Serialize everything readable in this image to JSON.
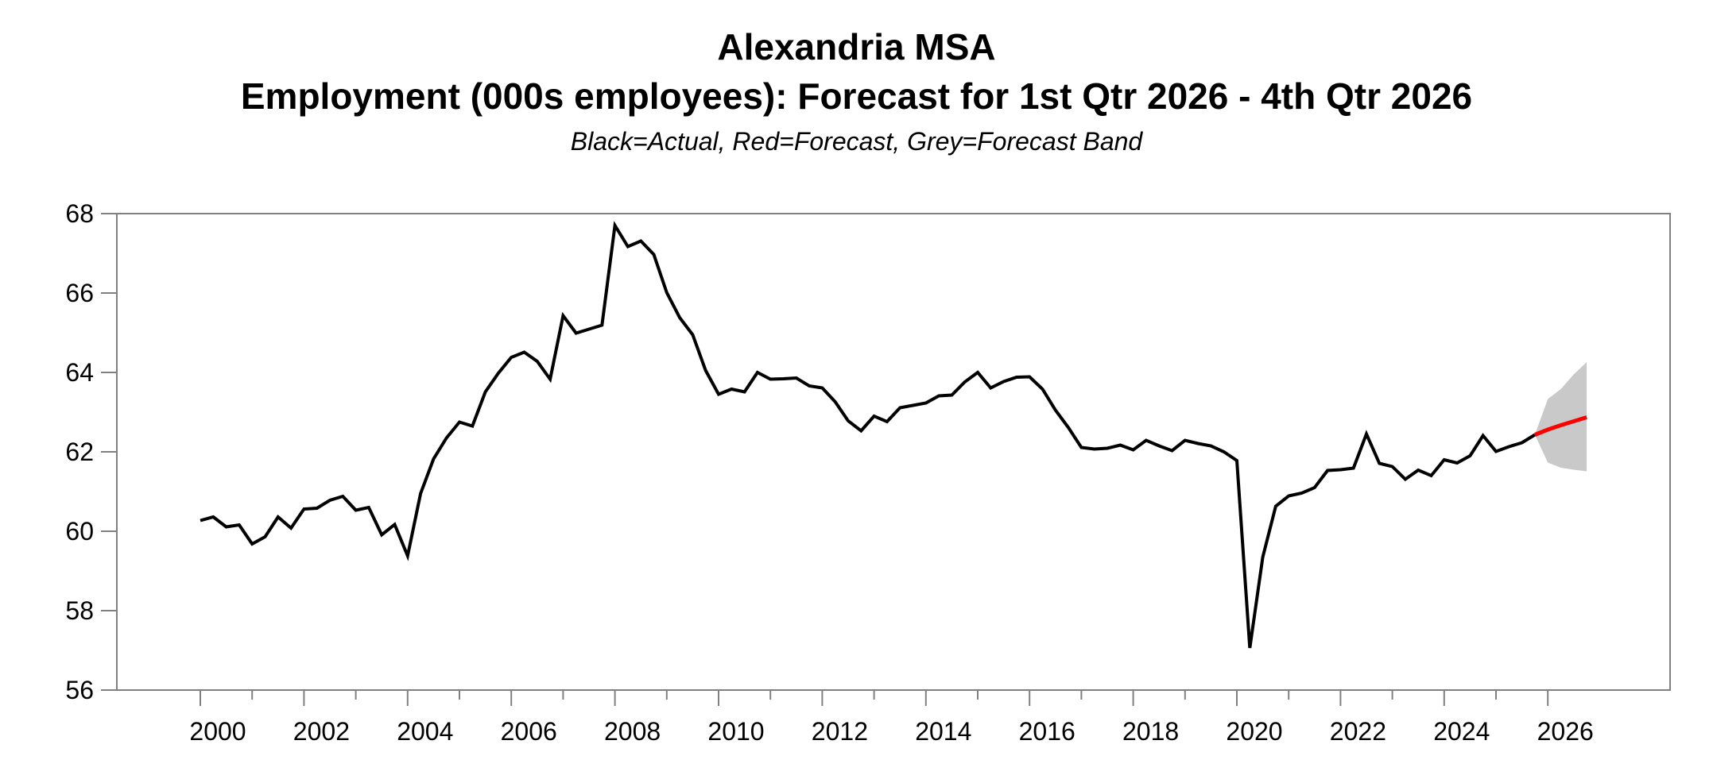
{
  "header": {
    "title_line1": "Alexandria MSA",
    "title_line2": "Employment (000s employees): Forecast for 1st Qtr 2026 - 4th Qtr 2026",
    "subtitle": "Black=Actual, Red=Forecast, Grey=Forecast Band"
  },
  "chart_data": {
    "type": "line",
    "title": "Alexandria MSA",
    "subtitle": "Employment (000s employees): Forecast for 1st Qtr 2026 - 4th Qtr 2026",
    "legend_note": "Black=Actual, Red=Forecast, Grey=Forecast Band",
    "xlabel": "",
    "ylabel": "",
    "frequency": "quarterly",
    "ylim": [
      56,
      68
    ],
    "y_ticks": [
      56,
      58,
      60,
      62,
      64,
      66,
      68
    ],
    "x_axis": {
      "first_tick_year": 2000,
      "last_tick_year": 2026,
      "tick_step_years": 1,
      "label_step_years": 2,
      "labels": [
        "2000",
        "2002",
        "2004",
        "2006",
        "2008",
        "2010",
        "2012",
        "2014",
        "2016",
        "2018",
        "2020",
        "2022",
        "2024",
        "2026"
      ]
    },
    "grid": "off",
    "series": [
      {
        "name": "Actual",
        "color": "#000000",
        "start": 2000.0,
        "step": 0.25,
        "values": [
          60.27,
          60.36,
          60.11,
          60.16,
          59.68,
          59.86,
          60.36,
          60.08,
          60.56,
          60.58,
          60.78,
          60.88,
          60.53,
          60.6,
          59.91,
          60.17,
          59.38,
          60.95,
          61.82,
          62.35,
          62.75,
          62.65,
          63.51,
          63.98,
          64.38,
          64.51,
          64.28,
          63.83,
          65.43,
          64.99,
          65.09,
          65.19,
          67.7,
          67.17,
          67.31,
          66.97,
          66.01,
          65.38,
          64.95,
          64.05,
          63.45,
          63.58,
          63.51,
          64.0,
          63.83,
          63.84,
          63.86,
          63.66,
          63.61,
          63.26,
          62.78,
          62.53,
          62.9,
          62.76,
          63.11,
          63.17,
          63.23,
          63.41,
          63.43,
          63.76,
          64.0,
          63.61,
          63.77,
          63.88,
          63.89,
          63.58,
          63.05,
          62.61,
          62.11,
          62.07,
          62.09,
          62.17,
          62.05,
          62.29,
          62.15,
          62.03,
          62.29,
          62.21,
          62.15,
          62.0,
          61.78,
          57.06,
          59.35,
          60.63,
          60.89,
          60.96,
          61.1,
          61.53,
          61.55,
          61.59,
          62.45,
          61.71,
          61.63,
          61.31,
          61.54,
          61.4,
          61.8,
          61.72,
          61.9,
          62.41,
          62.01,
          62.13,
          62.23,
          62.43
        ]
      },
      {
        "name": "Forecast",
        "color": "#ff0000",
        "start": 2025.75,
        "step": 0.25,
        "values": [
          62.43,
          62.56,
          62.67,
          62.77,
          62.87
        ]
      }
    ],
    "band": {
      "name": "Forecast Band",
      "color": "#c9c9c9",
      "start": 2025.75,
      "step": 0.25,
      "upper": [
        62.43,
        63.33,
        63.58,
        63.95,
        64.26
      ],
      "lower": [
        62.43,
        61.73,
        61.6,
        61.55,
        61.51
      ]
    },
    "colors": {
      "actual": "#000000",
      "forecast": "#ff0000",
      "band": "#c9c9c9",
      "frame": "#808080",
      "text": "#000000"
    }
  }
}
